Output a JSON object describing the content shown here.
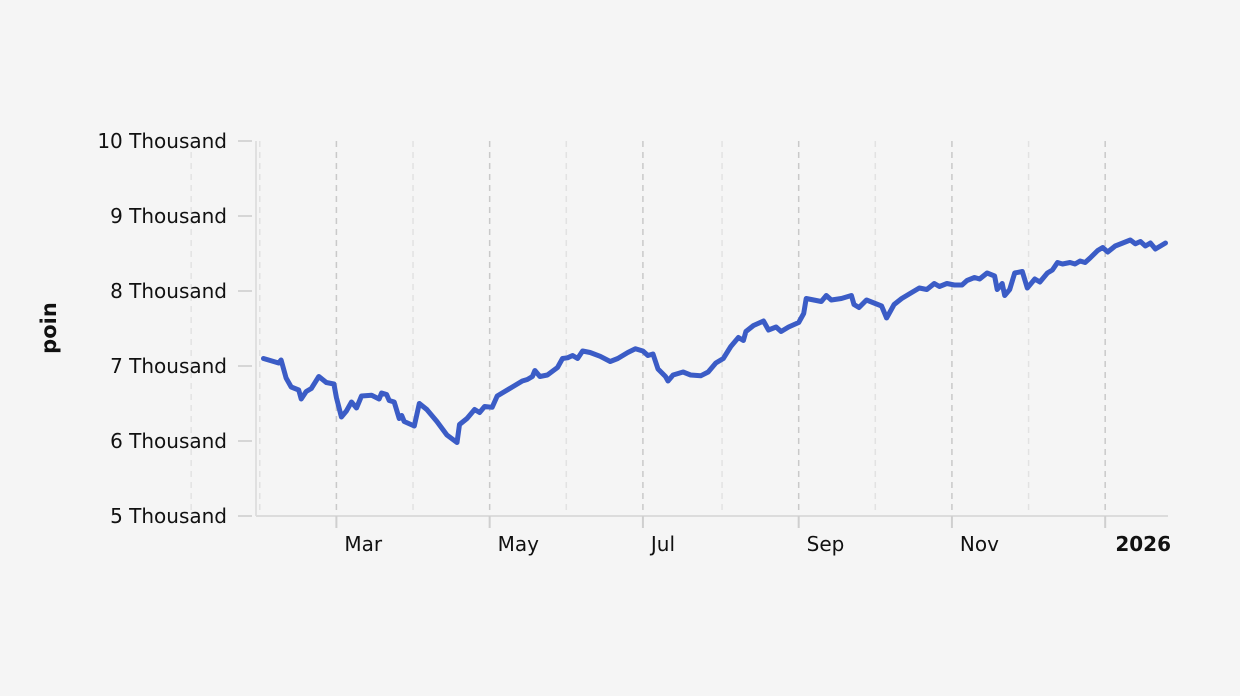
{
  "chart_data": {
    "type": "line",
    "title": "",
    "xlabel": "",
    "ylabel": "poin",
    "x_ticks": [
      {
        "date": "2025-03-01",
        "label": "Mar",
        "bold": false
      },
      {
        "date": "2025-05-01",
        "label": "May",
        "bold": false
      },
      {
        "date": "2025-07-01",
        "label": "Jul",
        "bold": false
      },
      {
        "date": "2025-09-01",
        "label": "Sep",
        "bold": false
      },
      {
        "date": "2025-11-01",
        "label": "Nov",
        "bold": false
      },
      {
        "date": "2026-01-01",
        "label": "2026",
        "bold": true
      }
    ],
    "y_ticks": [
      {
        "value": 5000,
        "label": "5 Thousand"
      },
      {
        "value": 6000,
        "label": "6 Thousand"
      },
      {
        "value": 7000,
        "label": "7 Thousand"
      },
      {
        "value": 8000,
        "label": "8 Thousand"
      },
      {
        "value": 9000,
        "label": "9 Thousand"
      },
      {
        "value": 10000,
        "label": "10 Thousand"
      }
    ],
    "xlim": [
      "2025-01-28",
      "2026-01-26"
    ],
    "ylim": [
      5000,
      10000
    ],
    "grid": "vertical dashed",
    "color": "#3b5cc6",
    "series": [
      {
        "name": "",
        "points": [
          [
            "2025-01-31",
            7100
          ],
          [
            "2025-02-04",
            7060
          ],
          [
            "2025-02-06",
            7040
          ],
          [
            "2025-02-07",
            7080
          ],
          [
            "2025-02-09",
            6840
          ],
          [
            "2025-02-11",
            6720
          ],
          [
            "2025-02-14",
            6680
          ],
          [
            "2025-02-15",
            6560
          ],
          [
            "2025-02-17",
            6660
          ],
          [
            "2025-02-19",
            6700
          ],
          [
            "2025-02-22",
            6860
          ],
          [
            "2025-02-25",
            6780
          ],
          [
            "2025-02-28",
            6760
          ],
          [
            "2025-03-01",
            6580
          ],
          [
            "2025-03-03",
            6320
          ],
          [
            "2025-03-05",
            6400
          ],
          [
            "2025-03-07",
            6520
          ],
          [
            "2025-03-09",
            6440
          ],
          [
            "2025-03-11",
            6600
          ],
          [
            "2025-03-15",
            6610
          ],
          [
            "2025-03-18",
            6560
          ],
          [
            "2025-03-19",
            6640
          ],
          [
            "2025-03-21",
            6620
          ],
          [
            "2025-03-22",
            6540
          ],
          [
            "2025-03-24",
            6520
          ],
          [
            "2025-03-26",
            6300
          ],
          [
            "2025-03-27",
            6340
          ],
          [
            "2025-03-28",
            6260
          ],
          [
            "2025-04-01",
            6200
          ],
          [
            "2025-04-03",
            6500
          ],
          [
            "2025-04-06",
            6420
          ],
          [
            "2025-04-10",
            6260
          ],
          [
            "2025-04-14",
            6080
          ],
          [
            "2025-04-18",
            5980
          ],
          [
            "2025-04-19",
            6220
          ],
          [
            "2025-04-22",
            6300
          ],
          [
            "2025-04-25",
            6420
          ],
          [
            "2025-04-27",
            6380
          ],
          [
            "2025-04-29",
            6460
          ],
          [
            "2025-05-02",
            6450
          ],
          [
            "2025-05-04",
            6600
          ],
          [
            "2025-05-06",
            6640
          ],
          [
            "2025-05-10",
            6720
          ],
          [
            "2025-05-14",
            6800
          ],
          [
            "2025-05-16",
            6820
          ],
          [
            "2025-05-18",
            6860
          ],
          [
            "2025-05-19",
            6940
          ],
          [
            "2025-05-21",
            6860
          ],
          [
            "2025-05-24",
            6880
          ],
          [
            "2025-05-28",
            6980
          ],
          [
            "2025-05-30",
            7100
          ],
          [
            "2025-06-01",
            7110
          ],
          [
            "2025-06-03",
            7140
          ],
          [
            "2025-06-05",
            7100
          ],
          [
            "2025-06-07",
            7200
          ],
          [
            "2025-06-10",
            7180
          ],
          [
            "2025-06-14",
            7130
          ],
          [
            "2025-06-18",
            7060
          ],
          [
            "2025-06-21",
            7100
          ],
          [
            "2025-06-25",
            7180
          ],
          [
            "2025-06-28",
            7230
          ],
          [
            "2025-07-01",
            7200
          ],
          [
            "2025-07-03",
            7140
          ],
          [
            "2025-07-05",
            7160
          ],
          [
            "2025-07-07",
            6960
          ],
          [
            "2025-07-10",
            6860
          ],
          [
            "2025-07-11",
            6800
          ],
          [
            "2025-07-13",
            6880
          ],
          [
            "2025-07-17",
            6920
          ],
          [
            "2025-07-20",
            6880
          ],
          [
            "2025-07-24",
            6870
          ],
          [
            "2025-07-27",
            6920
          ],
          [
            "2025-07-30",
            7040
          ],
          [
            "2025-08-02",
            7100
          ],
          [
            "2025-08-05",
            7260
          ],
          [
            "2025-08-08",
            7380
          ],
          [
            "2025-08-10",
            7340
          ],
          [
            "2025-08-11",
            7460
          ],
          [
            "2025-08-14",
            7540
          ],
          [
            "2025-08-18",
            7600
          ],
          [
            "2025-08-20",
            7480
          ],
          [
            "2025-08-23",
            7520
          ],
          [
            "2025-08-25",
            7460
          ],
          [
            "2025-08-28",
            7520
          ],
          [
            "2025-09-01",
            7580
          ],
          [
            "2025-09-03",
            7700
          ],
          [
            "2025-09-04",
            7900
          ],
          [
            "2025-09-07",
            7880
          ],
          [
            "2025-09-10",
            7860
          ],
          [
            "2025-09-12",
            7940
          ],
          [
            "2025-09-14",
            7880
          ],
          [
            "2025-09-18",
            7900
          ],
          [
            "2025-09-22",
            7940
          ],
          [
            "2025-09-23",
            7820
          ],
          [
            "2025-09-25",
            7780
          ],
          [
            "2025-09-28",
            7880
          ],
          [
            "2025-10-01",
            7840
          ],
          [
            "2025-10-04",
            7800
          ],
          [
            "2025-10-06",
            7640
          ],
          [
            "2025-10-09",
            7820
          ],
          [
            "2025-10-12",
            7900
          ],
          [
            "2025-10-16",
            7980
          ],
          [
            "2025-10-19",
            8040
          ],
          [
            "2025-10-22",
            8020
          ],
          [
            "2025-10-25",
            8100
          ],
          [
            "2025-10-27",
            8060
          ],
          [
            "2025-10-30",
            8100
          ],
          [
            "2025-11-02",
            8080
          ],
          [
            "2025-11-05",
            8080
          ],
          [
            "2025-11-07",
            8140
          ],
          [
            "2025-11-10",
            8180
          ],
          [
            "2025-11-12",
            8160
          ],
          [
            "2025-11-15",
            8240
          ],
          [
            "2025-11-18",
            8200
          ],
          [
            "2025-11-19",
            8020
          ],
          [
            "2025-11-21",
            8100
          ],
          [
            "2025-11-22",
            7940
          ],
          [
            "2025-11-24",
            8020
          ],
          [
            "2025-11-26",
            8240
          ],
          [
            "2025-11-29",
            8260
          ],
          [
            "2025-12-01",
            8040
          ],
          [
            "2025-12-04",
            8160
          ],
          [
            "2025-12-06",
            8120
          ],
          [
            "2025-12-09",
            8240
          ],
          [
            "2025-12-11",
            8280
          ],
          [
            "2025-12-13",
            8380
          ],
          [
            "2025-12-15",
            8360
          ],
          [
            "2025-12-18",
            8380
          ],
          [
            "2025-12-20",
            8360
          ],
          [
            "2025-12-22",
            8400
          ],
          [
            "2025-12-24",
            8380
          ],
          [
            "2025-12-26",
            8440
          ],
          [
            "2025-12-29",
            8540
          ],
          [
            "2025-12-31",
            8580
          ],
          [
            "2026-01-02",
            8520
          ],
          [
            "2026-01-05",
            8600
          ],
          [
            "2026-01-08",
            8640
          ],
          [
            "2026-01-11",
            8680
          ],
          [
            "2026-01-13",
            8630
          ],
          [
            "2026-01-15",
            8660
          ],
          [
            "2026-01-17",
            8600
          ],
          [
            "2026-01-19",
            8640
          ],
          [
            "2026-01-21",
            8560
          ],
          [
            "2026-01-23",
            8600
          ],
          [
            "2026-01-25",
            8640
          ]
        ]
      }
    ]
  }
}
